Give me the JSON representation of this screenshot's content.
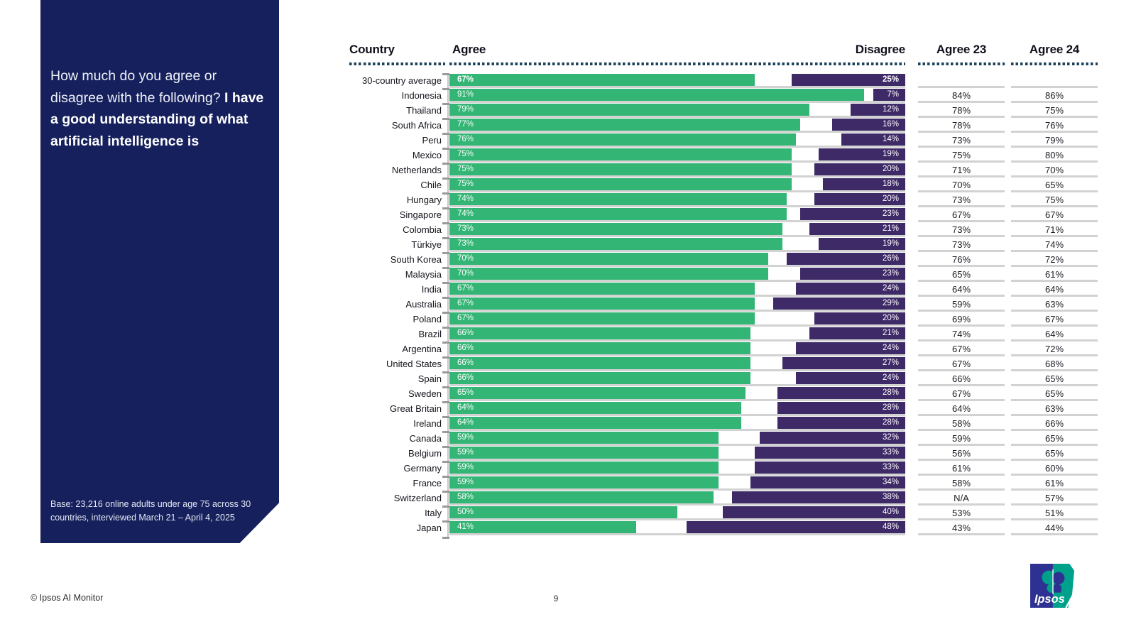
{
  "panel": {
    "question_intro": "How much do you agree or disagree with the following?",
    "question_bold": "I have a good understanding of what artificial intelligence is",
    "base_note": "Base: 23,216 online adults under age 75 across 30 countries, interviewed March 21 – April 4, 2025"
  },
  "table_headers": {
    "country": "Country",
    "agree": "Agree",
    "disagree": "Disagree",
    "agree23": "Agree 23",
    "agree24": "Agree 24"
  },
  "footer": {
    "copyright": "© Ipsos AI Monitor",
    "page_number": "9"
  },
  "logo": {
    "text": "Ipsos"
  },
  "colors": {
    "agree-green": "#33b575",
    "disagree-purple": "#3f2a68",
    "panel-navy": "#16205c",
    "dot": "#1d4259"
  },
  "chart_data": {
    "type": "bar",
    "orientation": "horizontal-diverging",
    "title": "I have a good understanding of what artificial intelligence is",
    "xmax": 100,
    "legend": [
      "Agree",
      "Disagree"
    ],
    "extra_columns": [
      "Agree 23",
      "Agree 24"
    ],
    "rows": [
      {
        "country": "30-country average",
        "agree": 67,
        "disagree": 25,
        "agree23": null,
        "agree24": null,
        "emphasis": true
      },
      {
        "country": "Indonesia",
        "agree": 91,
        "disagree": 7,
        "agree23": "84%",
        "agree24": "86%"
      },
      {
        "country": "Thailand",
        "agree": 79,
        "disagree": 12,
        "agree23": "78%",
        "agree24": "75%"
      },
      {
        "country": "South Africa",
        "agree": 77,
        "disagree": 16,
        "agree23": "78%",
        "agree24": "76%"
      },
      {
        "country": "Peru",
        "agree": 76,
        "disagree": 14,
        "agree23": "73%",
        "agree24": "79%"
      },
      {
        "country": "Mexico",
        "agree": 75,
        "disagree": 19,
        "agree23": "75%",
        "agree24": "80%"
      },
      {
        "country": "Netherlands",
        "agree": 75,
        "disagree": 20,
        "agree23": "71%",
        "agree24": "70%"
      },
      {
        "country": "Chile",
        "agree": 75,
        "disagree": 18,
        "agree23": "70%",
        "agree24": "65%"
      },
      {
        "country": "Hungary",
        "agree": 74,
        "disagree": 20,
        "agree23": "73%",
        "agree24": "75%"
      },
      {
        "country": "Singapore",
        "agree": 74,
        "disagree": 23,
        "agree23": "67%",
        "agree24": "67%"
      },
      {
        "country": "Colombia",
        "agree": 73,
        "disagree": 21,
        "agree23": "73%",
        "agree24": "71%"
      },
      {
        "country": "Türkiye",
        "agree": 73,
        "disagree": 19,
        "agree23": "73%",
        "agree24": "74%"
      },
      {
        "country": "South Korea",
        "agree": 70,
        "disagree": 26,
        "agree23": "76%",
        "agree24": "72%"
      },
      {
        "country": "Malaysia",
        "agree": 70,
        "disagree": 23,
        "agree23": "65%",
        "agree24": "61%"
      },
      {
        "country": "India",
        "agree": 67,
        "disagree": 24,
        "agree23": "64%",
        "agree24": "64%"
      },
      {
        "country": "Australia",
        "agree": 67,
        "disagree": 29,
        "agree23": "59%",
        "agree24": "63%"
      },
      {
        "country": "Poland",
        "agree": 67,
        "disagree": 20,
        "agree23": "69%",
        "agree24": "67%"
      },
      {
        "country": "Brazil",
        "agree": 66,
        "disagree": 21,
        "agree23": "74%",
        "agree24": "64%"
      },
      {
        "country": "Argentina",
        "agree": 66,
        "disagree": 24,
        "agree23": "67%",
        "agree24": "72%"
      },
      {
        "country": "United States",
        "agree": 66,
        "disagree": 27,
        "agree23": "67%",
        "agree24": "68%"
      },
      {
        "country": "Spain",
        "agree": 66,
        "disagree": 24,
        "agree23": "66%",
        "agree24": "65%"
      },
      {
        "country": "Sweden",
        "agree": 65,
        "disagree": 28,
        "agree23": "67%",
        "agree24": "65%"
      },
      {
        "country": "Great Britain",
        "agree": 64,
        "disagree": 28,
        "agree23": "64%",
        "agree24": "63%"
      },
      {
        "country": "Ireland",
        "agree": 64,
        "disagree": 28,
        "agree23": "58%",
        "agree24": "66%"
      },
      {
        "country": "Canada",
        "agree": 59,
        "disagree": 32,
        "agree23": "59%",
        "agree24": "65%"
      },
      {
        "country": "Belgium",
        "agree": 59,
        "disagree": 33,
        "agree23": "56%",
        "agree24": "65%"
      },
      {
        "country": "Germany",
        "agree": 59,
        "disagree": 33,
        "agree23": "61%",
        "agree24": "60%"
      },
      {
        "country": "France",
        "agree": 59,
        "disagree": 34,
        "agree23": "58%",
        "agree24": "61%"
      },
      {
        "country": "Switzerland",
        "agree": 58,
        "disagree": 38,
        "agree23": "N/A",
        "agree24": "57%"
      },
      {
        "country": "Italy",
        "agree": 50,
        "disagree": 40,
        "agree23": "53%",
        "agree24": "51%"
      },
      {
        "country": "Japan",
        "agree": 41,
        "disagree": 48,
        "agree23": "43%",
        "agree24": "44%"
      }
    ]
  }
}
